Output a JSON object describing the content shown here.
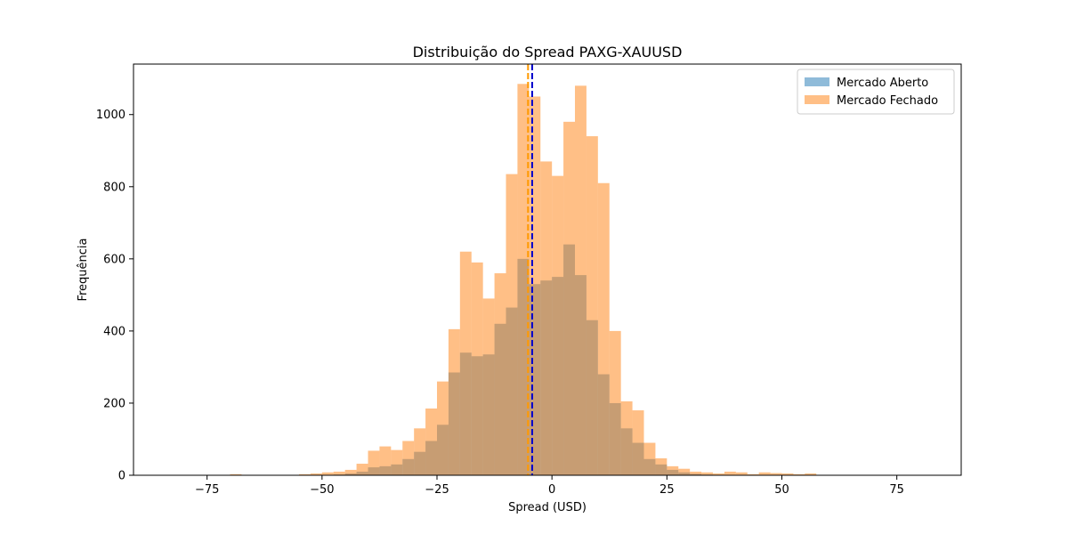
{
  "chart_data": {
    "type": "bar",
    "title": "Distribuição do Spread PAXG-XAUUSD",
    "xlabel": "Spread (USD)",
    "ylabel": "Frequência",
    "xlim": [
      -91,
      89
    ],
    "ylim": [
      0,
      1140
    ],
    "xticks": [
      -75,
      -50,
      -25,
      0,
      25,
      50,
      75
    ],
    "yticks": [
      0,
      200,
      400,
      600,
      800,
      1000
    ],
    "xtick_labels": [
      "−75",
      "−50",
      "−25",
      "0",
      "25",
      "50",
      "75"
    ],
    "ytick_labels": [
      "0",
      "200",
      "400",
      "600",
      "800",
      "1000"
    ],
    "bin_width": 2.5,
    "legend_position": "top-right",
    "series": [
      {
        "name": "Mercado Aberto",
        "color": "#1f77b4",
        "alpha": 0.5,
        "bins": [
          [
            -47.5,
            2
          ],
          [
            -45,
            5
          ],
          [
            -42.5,
            10
          ],
          [
            -40,
            22
          ],
          [
            -37.5,
            25
          ],
          [
            -35,
            30
          ],
          [
            -32.5,
            45
          ],
          [
            -30,
            65
          ],
          [
            -27.5,
            95
          ],
          [
            -25,
            140
          ],
          [
            -22.5,
            285
          ],
          [
            -20,
            340
          ],
          [
            -17.5,
            330
          ],
          [
            -15,
            335
          ],
          [
            -12.5,
            420
          ],
          [
            -10,
            465
          ],
          [
            -7.5,
            600
          ],
          [
            -5,
            530
          ],
          [
            -2.5,
            540
          ],
          [
            0,
            550
          ],
          [
            2.5,
            640
          ],
          [
            5,
            555
          ],
          [
            7.5,
            430
          ],
          [
            10,
            280
          ],
          [
            12.5,
            200
          ],
          [
            15,
            130
          ],
          [
            17.5,
            90
          ],
          [
            20,
            45
          ],
          [
            22.5,
            30
          ],
          [
            25,
            15
          ],
          [
            27.5,
            8
          ],
          [
            30,
            4
          ],
          [
            32.5,
            2
          ]
        ]
      },
      {
        "name": "Mercado Fechado",
        "color": "#ff7f0e",
        "alpha": 0.5,
        "bins": [
          [
            -70,
            3
          ],
          [
            -55,
            3
          ],
          [
            -52.5,
            5
          ],
          [
            -50,
            8
          ],
          [
            -47.5,
            10
          ],
          [
            -45,
            15
          ],
          [
            -42.5,
            32
          ],
          [
            -40,
            68
          ],
          [
            -37.5,
            80
          ],
          [
            -35,
            70
          ],
          [
            -32.5,
            95
          ],
          [
            -30,
            130
          ],
          [
            -27.5,
            185
          ],
          [
            -25,
            260
          ],
          [
            -22.5,
            405
          ],
          [
            -20,
            620
          ],
          [
            -17.5,
            590
          ],
          [
            -15,
            490
          ],
          [
            -12.5,
            560
          ],
          [
            -10,
            835
          ],
          [
            -7.5,
            1085
          ],
          [
            -5,
            1050
          ],
          [
            -2.5,
            870
          ],
          [
            0,
            830
          ],
          [
            2.5,
            980
          ],
          [
            5,
            1080
          ],
          [
            7.5,
            940
          ],
          [
            10,
            810
          ],
          [
            12.5,
            400
          ],
          [
            15,
            205
          ],
          [
            17.5,
            180
          ],
          [
            20,
            90
          ],
          [
            22.5,
            47
          ],
          [
            25,
            25
          ],
          [
            27.5,
            18
          ],
          [
            30,
            10
          ],
          [
            32.5,
            8
          ],
          [
            35,
            5
          ],
          [
            37.5,
            10
          ],
          [
            40,
            8
          ],
          [
            42.5,
            3
          ],
          [
            45,
            8
          ],
          [
            47.5,
            6
          ],
          [
            50,
            5
          ],
          [
            52.5,
            3
          ],
          [
            55,
            5
          ]
        ]
      }
    ],
    "vlines": [
      {
        "x": -5.2,
        "color": "#ff9900",
        "style": "dashed"
      },
      {
        "x": -4.3,
        "color": "#0000cc",
        "style": "dashed"
      }
    ]
  }
}
